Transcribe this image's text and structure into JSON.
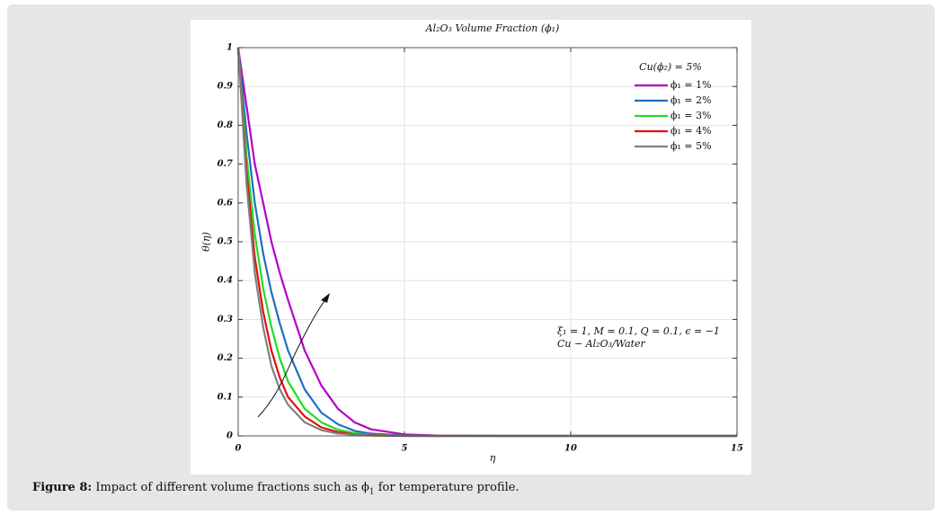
{
  "chart_data": {
    "type": "line",
    "title": "Al₂O₃ Volume Fraction (ϕ₁)",
    "x_label": "η",
    "y_label": "θ(η)",
    "legend_title": "Cu(ϕ₂) = 5%",
    "legend": "upper right",
    "grid": true,
    "annotations": [
      "ξ₁ = 1, M = 0.1, Q = 0.1, ϵ = −1",
      "Cu − Al₂O₃/Water"
    ],
    "x": [
      0,
      0.25,
      0.5,
      0.75,
      1,
      1.25,
      1.5,
      2,
      2.5,
      3,
      3.5,
      4,
      5,
      6,
      8,
      10,
      12,
      15
    ],
    "series": [
      {
        "name": "ϕ₁ = 1%",
        "color": "#b400c8",
        "values": [
          1,
          0.85,
          0.7,
          0.6,
          0.5,
          0.42,
          0.35,
          0.22,
          0.13,
          0.07,
          0.035,
          0.017,
          0.004,
          0.001,
          0,
          0,
          0,
          0
        ]
      },
      {
        "name": "ϕ₁ = 2%",
        "color": "#1f6fbf",
        "values": [
          1,
          0.78,
          0.6,
          0.47,
          0.37,
          0.29,
          0.22,
          0.12,
          0.06,
          0.03,
          0.013,
          0.006,
          0.001,
          0,
          0,
          0,
          0,
          0
        ]
      },
      {
        "name": "ϕ₁ = 3%",
        "color": "#22dd22",
        "values": [
          1,
          0.72,
          0.52,
          0.38,
          0.28,
          0.2,
          0.14,
          0.07,
          0.035,
          0.016,
          0.007,
          0.003,
          0.0005,
          0,
          0,
          0,
          0,
          0
        ]
      },
      {
        "name": "ϕ₁ = 4%",
        "color": "#e01010",
        "values": [
          1,
          0.68,
          0.46,
          0.32,
          0.22,
          0.15,
          0.1,
          0.05,
          0.022,
          0.01,
          0.004,
          0.002,
          0,
          0,
          0,
          0,
          0,
          0
        ]
      },
      {
        "name": "ϕ₁ = 5%",
        "color": "#808080",
        "values": [
          1,
          0.65,
          0.42,
          0.28,
          0.18,
          0.12,
          0.08,
          0.035,
          0.015,
          0.006,
          0.003,
          0.001,
          0,
          0,
          0,
          0,
          0,
          0
        ]
      }
    ],
    "xlim": [
      0,
      15
    ],
    "xticks": [
      0,
      5,
      10,
      15
    ],
    "ylim": [
      0,
      1
    ],
    "yticks": [
      0,
      0.1,
      0.2,
      0.3,
      0.4,
      0.5,
      0.6,
      0.7,
      0.8,
      0.9,
      1
    ]
  },
  "caption": {
    "label": "Figure 8:",
    "text": "Impact of different volume fractions such as ϕ",
    "subscript": "1",
    "text_end": " for temperature profile."
  }
}
